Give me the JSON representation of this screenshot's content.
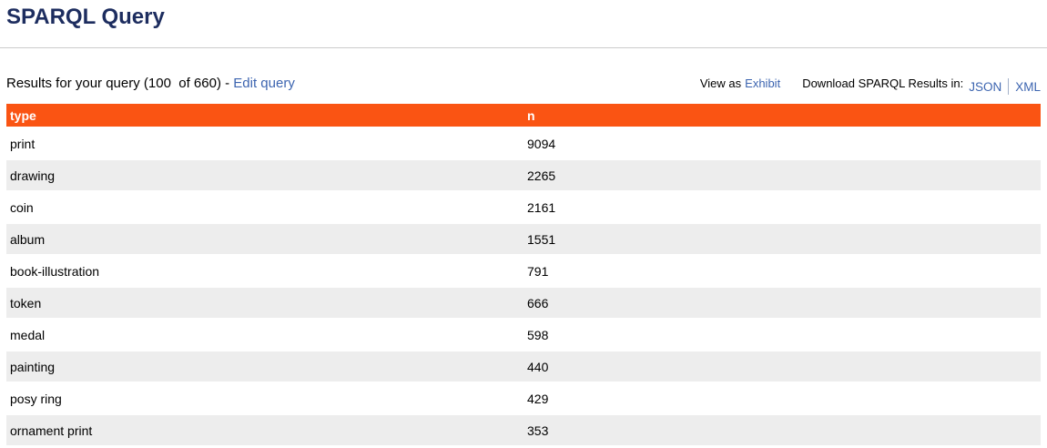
{
  "page": {
    "title": "SPARQL Query"
  },
  "results_bar": {
    "summary": "Results for your query (100  of 660) - ",
    "edit_query_label": "Edit query",
    "view_as_label": "View as",
    "exhibit_label": "Exhibit",
    "download_label": "Download SPARQL Results in:",
    "json_label": "JSON",
    "xml_label": "XML"
  },
  "table": {
    "columns": [
      "type",
      "n"
    ],
    "rows": [
      {
        "type": "print",
        "n": "9094"
      },
      {
        "type": "drawing",
        "n": "2265"
      },
      {
        "type": "coin",
        "n": "2161"
      },
      {
        "type": "album",
        "n": "1551"
      },
      {
        "type": "book-illustration",
        "n": "791"
      },
      {
        "type": "token",
        "n": "666"
      },
      {
        "type": "medal",
        "n": "598"
      },
      {
        "type": "painting",
        "n": "440"
      },
      {
        "type": "posy ring",
        "n": "429"
      },
      {
        "type": "ornament print",
        "n": "353"
      }
    ]
  },
  "colors": {
    "header_bg": "#fa5413",
    "alt_row_bg": "#ededed",
    "link": "#3d65b0",
    "title": "#1d2d5f",
    "rule": "#cccccc",
    "format_separator": "#a3b1c9"
  }
}
